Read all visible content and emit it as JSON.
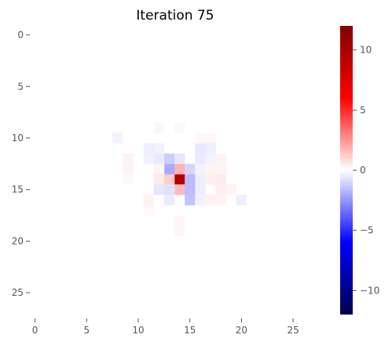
{
  "chart_data": {
    "type": "heatmap",
    "title": "Iteration 75",
    "xlabel": "",
    "ylabel": "",
    "grid_size": [
      28,
      28
    ],
    "xlim": [
      -0.5,
      27.5
    ],
    "ylim": [
      27.5,
      -0.5
    ],
    "x_ticks": [
      0,
      5,
      10,
      15,
      20,
      25
    ],
    "y_ticks": [
      0,
      5,
      10,
      15,
      20,
      25
    ],
    "grid": false,
    "colormap": "seismic",
    "color_range": [
      -12,
      12
    ],
    "colorbar": {
      "position": "right",
      "ticks": [
        10,
        5,
        0,
        -5,
        -10
      ],
      "stops": [
        {
          "value": -12,
          "color": "#00004c"
        },
        {
          "value": -6,
          "color": "#0000ff"
        },
        {
          "value": 0,
          "color": "#ffffff"
        },
        {
          "value": 6,
          "color": "#ff0000"
        },
        {
          "value": 12,
          "color": "#800000"
        }
      ]
    },
    "background_value": 0,
    "cells": [
      {
        "row": 14,
        "col": 14,
        "value": 9.5
      },
      {
        "row": 13,
        "col": 14,
        "value": 1.8
      },
      {
        "row": 15,
        "col": 14,
        "value": 1.6
      },
      {
        "row": 14,
        "col": 13,
        "value": 1.2
      },
      {
        "row": 14,
        "col": 15,
        "value": -1.6
      },
      {
        "row": 13,
        "col": 13,
        "value": -2.0
      },
      {
        "row": 12,
        "col": 13,
        "value": -1.2
      },
      {
        "row": 15,
        "col": 15,
        "value": -1.6
      },
      {
        "row": 16,
        "col": 15,
        "value": -1.4
      },
      {
        "row": 13,
        "col": 15,
        "value": -1.0
      },
      {
        "row": 12,
        "col": 14,
        "value": -0.6
      },
      {
        "row": 12,
        "col": 12,
        "value": -0.5
      },
      {
        "row": 11,
        "col": 11,
        "value": -0.4
      },
      {
        "row": 11,
        "col": 12,
        "value": -0.3
      },
      {
        "row": 11,
        "col": 16,
        "value": -0.6
      },
      {
        "row": 11,
        "col": 17,
        "value": -0.4
      },
      {
        "row": 12,
        "col": 16,
        "value": -0.5
      },
      {
        "row": 12,
        "col": 17,
        "value": -0.3
      },
      {
        "row": 13,
        "col": 16,
        "value": -0.3
      },
      {
        "row": 14,
        "col": 16,
        "value": -0.4
      },
      {
        "row": 15,
        "col": 12,
        "value": -0.6
      },
      {
        "row": 15,
        "col": 13,
        "value": -0.7
      },
      {
        "row": 15,
        "col": 16,
        "value": -0.4
      },
      {
        "row": 16,
        "col": 13,
        "value": -0.5
      },
      {
        "row": 16,
        "col": 16,
        "value": -0.3
      },
      {
        "row": 10,
        "col": 8,
        "value": -0.3
      },
      {
        "row": 12,
        "col": 11,
        "value": -0.3
      },
      {
        "row": 16,
        "col": 20,
        "value": -0.4
      },
      {
        "row": 14,
        "col": 12,
        "value": 0.5
      },
      {
        "row": 14,
        "col": 17,
        "value": 0.4
      },
      {
        "row": 14,
        "col": 18,
        "value": 0.5
      },
      {
        "row": 13,
        "col": 12,
        "value": 0.3
      },
      {
        "row": 13,
        "col": 17,
        "value": 0.3
      },
      {
        "row": 12,
        "col": 9,
        "value": 0.3
      },
      {
        "row": 13,
        "col": 9,
        "value": 0.3
      },
      {
        "row": 14,
        "col": 9,
        "value": 0.2
      },
      {
        "row": 12,
        "col": 18,
        "value": 0.3
      },
      {
        "row": 13,
        "col": 18,
        "value": 0.3
      },
      {
        "row": 15,
        "col": 18,
        "value": 0.4
      },
      {
        "row": 15,
        "col": 19,
        "value": 0.3
      },
      {
        "row": 16,
        "col": 18,
        "value": 0.3
      },
      {
        "row": 16,
        "col": 17,
        "value": 0.3
      },
      {
        "row": 16,
        "col": 11,
        "value": 0.3
      },
      {
        "row": 17,
        "col": 11,
        "value": 0.2
      },
      {
        "row": 9,
        "col": 12,
        "value": 0.2
      },
      {
        "row": 9,
        "col": 14,
        "value": 0.2
      },
      {
        "row": 10,
        "col": 16,
        "value": 0.2
      },
      {
        "row": 10,
        "col": 17,
        "value": 0.2
      },
      {
        "row": 18,
        "col": 14,
        "value": 0.2
      },
      {
        "row": 19,
        "col": 14,
        "value": 0.2
      }
    ]
  }
}
